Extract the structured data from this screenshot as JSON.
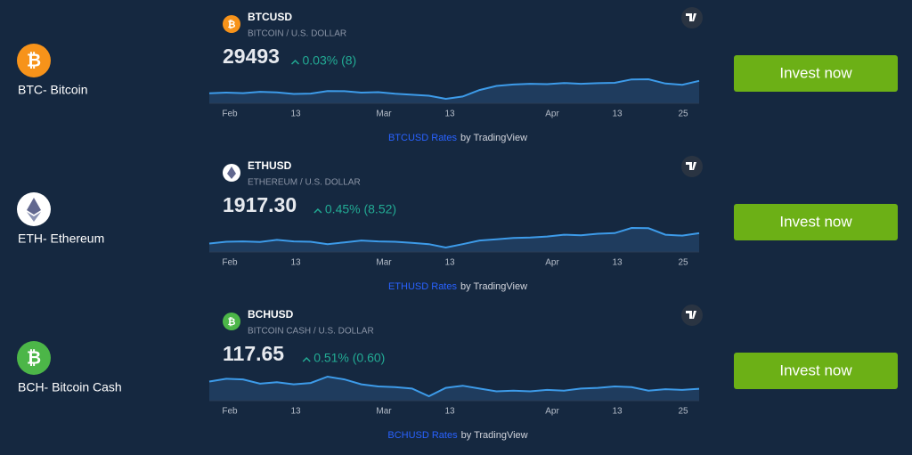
{
  "date_labels": [
    "Feb",
    "13",
    "Mar",
    "13",
    "Apr",
    "13",
    "25"
  ],
  "rates_suffix": "by TradingView",
  "button": "Invest now",
  "assets": [
    {
      "name": "BTC- Bitcoin",
      "icon_glyph": "₿",
      "color": "#f7931a",
      "symbol": "BTCUSD",
      "description": "BITCOIN / U.S. DOLLAR",
      "price": "29493",
      "change": "0.03% (8)",
      "rates_link": "BTCUSD Rates",
      "trend": [
        23100,
        23500,
        23200,
        23900,
        23600,
        22800,
        23000,
        24300,
        24200,
        23500,
        23700,
        22900,
        22400,
        21900,
        20300,
        21500,
        24800,
        26900,
        27600,
        28000,
        27800,
        28400,
        28000,
        28300,
        28500,
        30200,
        30300,
        28100,
        27500,
        29493
      ]
    },
    {
      "name": "ETH- Ethereum",
      "color": "#ffffff",
      "symbol": "ETHUSD",
      "description": "ETHEREUM / U.S. DOLLAR",
      "price": "1917.30",
      "change": "0.45% (8.52)",
      "rates_link": "ETHUSD Rates",
      "trend": [
        1580,
        1640,
        1650,
        1630,
        1700,
        1650,
        1640,
        1560,
        1620,
        1680,
        1650,
        1640,
        1600,
        1560,
        1450,
        1560,
        1680,
        1720,
        1760,
        1780,
        1810,
        1870,
        1850,
        1900,
        1920,
        2090,
        2080,
        1870,
        1840,
        1917.3
      ]
    },
    {
      "name": "BCH- Bitcoin Cash",
      "icon_glyph": "₿",
      "color": "#4cb648",
      "symbol": "BCHUSD",
      "description": "BITCOIN CASH / U.S. DOLLAR",
      "price": "117.65",
      "change": "0.51% (0.60)",
      "rates_link": "BCHUSD Rates",
      "trend": [
        128,
        132,
        131,
        125,
        127,
        124,
        126,
        135,
        131,
        124,
        121,
        120,
        118,
        107,
        119,
        122,
        118,
        114,
        115,
        114,
        116,
        115,
        118,
        119,
        121,
        120,
        115,
        117,
        116,
        117.65
      ]
    }
  ]
}
